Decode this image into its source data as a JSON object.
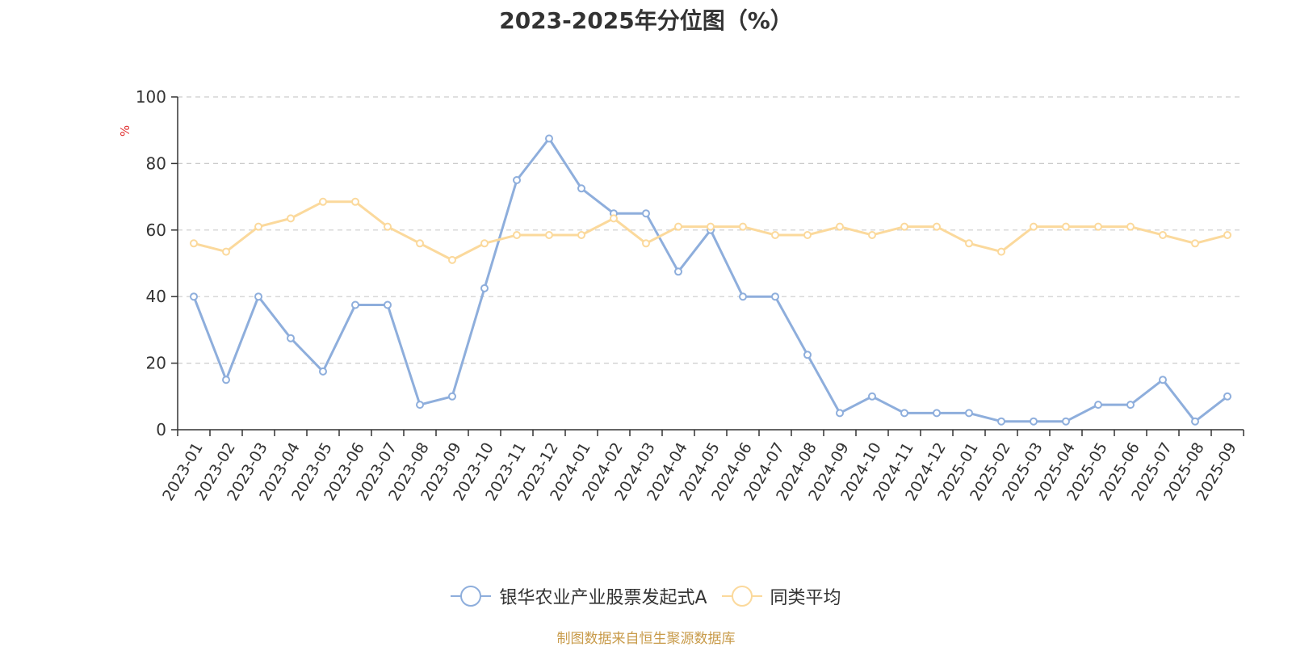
{
  "chart_data": {
    "type": "line",
    "title": "2023-2025年分位图（%）",
    "ylabel": "%",
    "ylim": [
      0,
      100
    ],
    "yticks": [
      0,
      20,
      40,
      60,
      80,
      100
    ],
    "grid": true,
    "legend_position": "bottom-center",
    "categories": [
      "2023-01",
      "2023-02",
      "2023-03",
      "2023-04",
      "2023-05",
      "2023-06",
      "2023-07",
      "2023-08",
      "2023-09",
      "2023-10",
      "2023-11",
      "2023-12",
      "2024-01",
      "2024-02",
      "2024-03",
      "2024-04",
      "2024-05",
      "2024-06",
      "2024-07",
      "2024-08",
      "2024-09",
      "2024-10",
      "2024-11",
      "2024-12",
      "2025-01",
      "2025-02",
      "2025-03",
      "2025-04",
      "2025-05",
      "2025-06",
      "2025-07",
      "2025-08",
      "2025-09"
    ],
    "series": [
      {
        "name": "银华农业产业股票发起式A",
        "color": "#8eaedc",
        "values": [
          40,
          15,
          40,
          27.5,
          17.5,
          37.5,
          37.5,
          7.5,
          10,
          42.5,
          75,
          87.5,
          72.5,
          65,
          65,
          47.5,
          60,
          40,
          40,
          22.5,
          5,
          10,
          5,
          5,
          5,
          2.5,
          2.5,
          2.5,
          7.5,
          7.5,
          15,
          2.5,
          10
        ]
      },
      {
        "name": "同类平均",
        "color": "#fbd99c",
        "values": [
          56,
          53.5,
          61,
          63.5,
          68.5,
          68.5,
          61,
          56,
          51,
          56,
          58.5,
          58.5,
          58.5,
          63.5,
          56,
          61,
          61,
          61,
          58.5,
          58.5,
          61,
          58.5,
          61,
          61,
          56,
          53.5,
          61,
          61,
          61,
          61,
          58.5,
          56,
          58.5
        ]
      }
    ]
  },
  "footer": "制图数据来自恒生聚源数据库"
}
